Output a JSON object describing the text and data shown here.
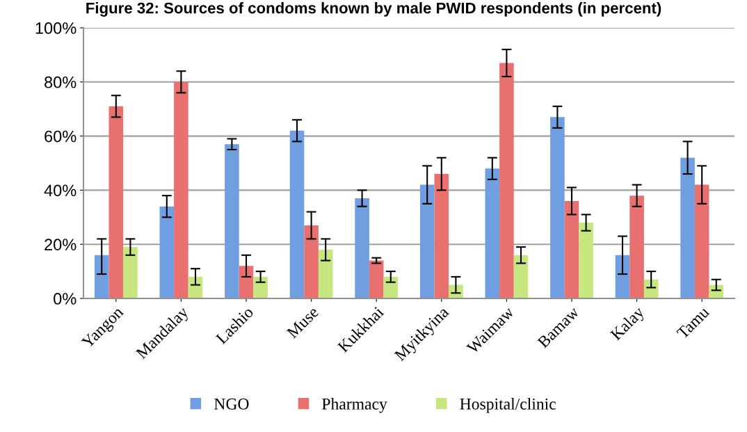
{
  "chart_data": {
    "type": "bar",
    "title": "Figure 32: Sources of condoms known by male PWID respondents (in percent)",
    "categories": [
      "Yangon",
      "Mandalay",
      "Lashio",
      "Muse",
      "Kukkhai",
      "Myitkyina",
      "Waimaw",
      "Bamaw",
      "Kalay",
      "Tamu"
    ],
    "series": [
      {
        "name": "NGO",
        "color": "#6f9fe0",
        "values": [
          16,
          34,
          57,
          62,
          37,
          42,
          48,
          67,
          16,
          52
        ],
        "errors": [
          [
            9,
            22
          ],
          [
            30,
            38
          ],
          [
            55,
            59
          ],
          [
            58,
            66
          ],
          [
            34,
            40
          ],
          [
            35,
            49
          ],
          [
            44,
            52
          ],
          [
            63,
            71
          ],
          [
            9,
            23
          ],
          [
            46,
            58
          ]
        ]
      },
      {
        "name": "Pharmacy",
        "color": "#e8716f",
        "values": [
          71,
          80,
          12,
          27,
          14,
          46,
          87,
          36,
          38,
          42
        ],
        "errors": [
          [
            67,
            75
          ],
          [
            76,
            84
          ],
          [
            8,
            16
          ],
          [
            22,
            32
          ],
          [
            13,
            15
          ],
          [
            40,
            52
          ],
          [
            82,
            92
          ],
          [
            31,
            41
          ],
          [
            34,
            42
          ],
          [
            35,
            49
          ]
        ]
      },
      {
        "name": "Hospital/clinic",
        "color": "#c6e67f",
        "values": [
          19,
          8,
          8,
          18,
          8,
          5,
          16,
          28,
          7,
          5
        ],
        "errors": [
          [
            16,
            22
          ],
          [
            5,
            11
          ],
          [
            6,
            10
          ],
          [
            14,
            22
          ],
          [
            6,
            10
          ],
          [
            2,
            8
          ],
          [
            13,
            19
          ],
          [
            25,
            31
          ],
          [
            4,
            10
          ],
          [
            3,
            7
          ]
        ]
      }
    ],
    "ylim": [
      0,
      100
    ],
    "yticks": [
      {
        "value": 0,
        "label": "0%"
      },
      {
        "value": 20,
        "label": "20%"
      },
      {
        "value": 40,
        "label": "40%"
      },
      {
        "value": 60,
        "label": "60%"
      },
      {
        "value": 80,
        "label": "80%"
      },
      {
        "value": 100,
        "label": "100%"
      }
    ],
    "grid": "y",
    "legend": "bottom"
  }
}
